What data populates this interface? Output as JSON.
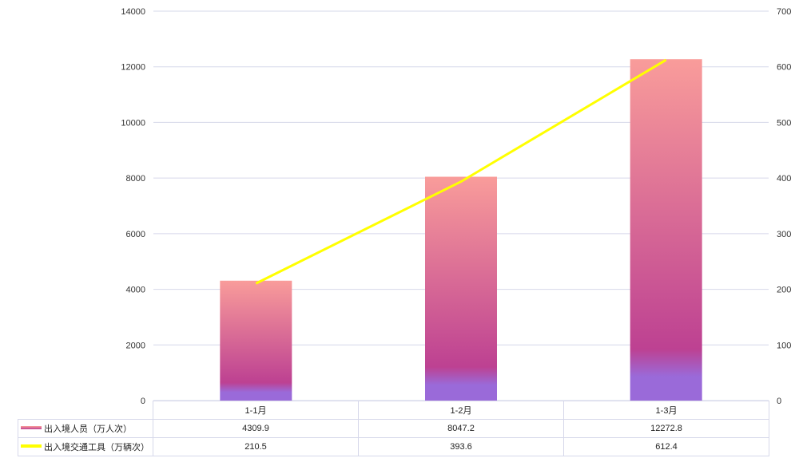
{
  "chart_data": {
    "type": "bar+line",
    "categories": [
      "1-1月",
      "1-2月",
      "1-3月"
    ],
    "series": [
      {
        "name": "出入境人员（万人次）",
        "type": "bar",
        "axis": "left",
        "values": [
          4309.9,
          8047.2,
          12272.8
        ],
        "color": "#d0508f"
      },
      {
        "name": "出入境交通工具（万辆次）",
        "type": "line",
        "axis": "right",
        "values": [
          210.5,
          393.6,
          612.4
        ],
        "color": "#ffff00"
      }
    ],
    "y_left": {
      "range": [
        0,
        14000
      ],
      "ticks": [
        0,
        2000,
        4000,
        6000,
        8000,
        10000,
        12000,
        14000
      ]
    },
    "y_right": {
      "range": [
        0,
        700
      ],
      "ticks": [
        0,
        100,
        200,
        300,
        400,
        500,
        600,
        700
      ]
    },
    "grid": true,
    "legend": "data-table bottom",
    "bar_gradient": [
      "#f99c9a",
      "#bd4192",
      "#9a6ad9"
    ]
  }
}
